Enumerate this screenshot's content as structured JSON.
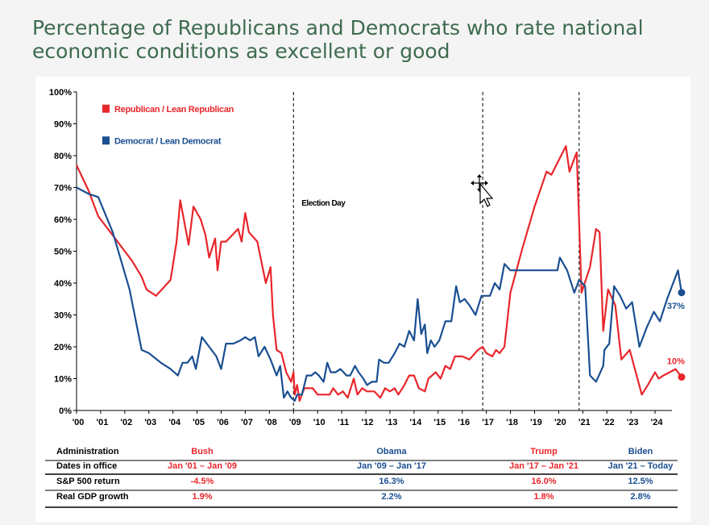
{
  "title_lines": [
    "Percentage of Republicans and Democrats who rate national",
    "economic conditions as excellent or good"
  ],
  "chart_data": {
    "type": "line",
    "title": "Percentage of Republicans and Democrats who rate national economic conditions as excellent or good",
    "xlabel": "",
    "ylabel": "",
    "xlim": [
      2000,
      2024.7
    ],
    "ylim": [
      0,
      100
    ],
    "grid": false,
    "legend_placement": "top-left",
    "y_ticks": [
      "0%",
      "10%",
      "20%",
      "30%",
      "40%",
      "50%",
      "60%",
      "70%",
      "80%",
      "90%",
      "100%"
    ],
    "x_ticks": [
      "'00",
      "'01",
      "'02",
      "'03",
      "'04",
      "'05",
      "'06",
      "'07",
      "'08",
      "'09",
      "'10",
      "'11",
      "'12",
      "'13",
      "'14",
      "'15",
      "'16",
      "'17",
      "'18",
      "'19",
      "'20",
      "'21",
      "'22",
      "'23",
      "'24"
    ],
    "annotations": [
      {
        "text": "Election Day",
        "x": 2009.0
      },
      {
        "text": "",
        "x": 2016.85
      },
      {
        "text": "",
        "x": 2020.85
      }
    ],
    "end_labels": [
      {
        "series": "Democrat / Lean Democrat",
        "text": "37%",
        "x": 2024.3,
        "y": 37
      },
      {
        "series": "Republican / Lean Republican",
        "text": "10%",
        "x": 2024.3,
        "y": 10.5
      }
    ],
    "series": [
      {
        "name": "Republican / Lean Republican",
        "color": "#e8262c",
        "points": [
          [
            2000.0,
            77
          ],
          [
            2000.5,
            69
          ],
          [
            2000.9,
            61
          ],
          [
            2001.5,
            55
          ],
          [
            2002.3,
            47
          ],
          [
            2002.7,
            42
          ],
          [
            2002.9,
            38
          ],
          [
            2003.3,
            36
          ],
          [
            2003.9,
            41
          ],
          [
            2004.15,
            53
          ],
          [
            2004.3,
            66
          ],
          [
            2004.65,
            52
          ],
          [
            2004.85,
            64
          ],
          [
            2005.15,
            60
          ],
          [
            2005.35,
            55
          ],
          [
            2005.5,
            48
          ],
          [
            2005.75,
            54
          ],
          [
            2005.85,
            44
          ],
          [
            2006.0,
            53
          ],
          [
            2006.2,
            53
          ],
          [
            2006.45,
            55
          ],
          [
            2006.7,
            57
          ],
          [
            2006.85,
            53
          ],
          [
            2007.0,
            62
          ],
          [
            2007.15,
            56
          ],
          [
            2007.5,
            53
          ],
          [
            2007.85,
            40
          ],
          [
            2008.05,
            45
          ],
          [
            2008.15,
            30
          ],
          [
            2008.3,
            19
          ],
          [
            2008.5,
            18
          ],
          [
            2008.7,
            12
          ],
          [
            2008.9,
            9
          ],
          [
            2009.0,
            12
          ],
          [
            2009.05,
            5
          ],
          [
            2009.15,
            8
          ],
          [
            2009.25,
            3
          ],
          [
            2009.45,
            7
          ],
          [
            2009.8,
            7
          ],
          [
            2010.0,
            5
          ],
          [
            2010.2,
            5
          ],
          [
            2010.5,
            5
          ],
          [
            2010.65,
            7
          ],
          [
            2010.85,
            5
          ],
          [
            2011.05,
            6
          ],
          [
            2011.25,
            4
          ],
          [
            2011.5,
            10
          ],
          [
            2011.65,
            5
          ],
          [
            2011.85,
            7
          ],
          [
            2012.05,
            6
          ],
          [
            2012.35,
            6
          ],
          [
            2012.6,
            4
          ],
          [
            2012.8,
            7
          ],
          [
            2013.0,
            6
          ],
          [
            2013.2,
            7
          ],
          [
            2013.35,
            5
          ],
          [
            2013.6,
            8
          ],
          [
            2013.8,
            11
          ],
          [
            2014.0,
            11
          ],
          [
            2014.2,
            7
          ],
          [
            2014.45,
            6
          ],
          [
            2014.6,
            10
          ],
          [
            2014.9,
            12
          ],
          [
            2015.1,
            10
          ],
          [
            2015.3,
            14
          ],
          [
            2015.5,
            13
          ],
          [
            2015.7,
            17
          ],
          [
            2016.0,
            17
          ],
          [
            2016.3,
            16
          ],
          [
            2016.65,
            19
          ],
          [
            2016.85,
            20
          ],
          [
            2017.0,
            18
          ],
          [
            2017.25,
            17
          ],
          [
            2017.4,
            19
          ],
          [
            2017.55,
            18
          ],
          [
            2017.75,
            20
          ],
          [
            2018.0,
            37
          ],
          [
            2018.5,
            51
          ],
          [
            2019.0,
            64
          ],
          [
            2019.5,
            75
          ],
          [
            2019.7,
            74
          ],
          [
            2020.1,
            80
          ],
          [
            2020.3,
            83
          ],
          [
            2020.45,
            75
          ],
          [
            2020.75,
            81
          ],
          [
            2020.95,
            37
          ],
          [
            2021.3,
            45
          ],
          [
            2021.55,
            57
          ],
          [
            2021.7,
            56
          ],
          [
            2021.85,
            25
          ],
          [
            2022.05,
            38
          ],
          [
            2022.35,
            33
          ],
          [
            2022.6,
            16
          ],
          [
            2022.95,
            19
          ],
          [
            2023.2,
            12
          ],
          [
            2023.45,
            5
          ],
          [
            2023.7,
            8
          ],
          [
            2024.0,
            12
          ],
          [
            2024.15,
            10
          ],
          [
            2024.35,
            11
          ],
          [
            2024.6,
            12
          ],
          [
            2024.85,
            13
          ],
          [
            2024.95,
            12
          ],
          [
            2025.1,
            10.5
          ]
        ]
      },
      {
        "name": "Democrat / Lean Democrat",
        "color": "#1a4f91",
        "points": [
          [
            2000.0,
            70
          ],
          [
            2000.5,
            68
          ],
          [
            2000.9,
            67
          ],
          [
            2001.5,
            56
          ],
          [
            2002.2,
            38
          ],
          [
            2002.7,
            19
          ],
          [
            2003.0,
            18
          ],
          [
            2003.5,
            15
          ],
          [
            2003.9,
            13
          ],
          [
            2004.2,
            11
          ],
          [
            2004.4,
            15
          ],
          [
            2004.6,
            15
          ],
          [
            2004.8,
            17
          ],
          [
            2004.95,
            13
          ],
          [
            2005.2,
            23
          ],
          [
            2005.5,
            20
          ],
          [
            2005.8,
            17
          ],
          [
            2006.0,
            13
          ],
          [
            2006.2,
            21
          ],
          [
            2006.5,
            21
          ],
          [
            2006.8,
            22
          ],
          [
            2007.0,
            23
          ],
          [
            2007.2,
            22
          ],
          [
            2007.4,
            23
          ],
          [
            2007.55,
            17
          ],
          [
            2007.8,
            20
          ],
          [
            2008.05,
            16
          ],
          [
            2008.3,
            11
          ],
          [
            2008.45,
            14
          ],
          [
            2008.6,
            4
          ],
          [
            2008.75,
            6
          ],
          [
            2008.9,
            4
          ],
          [
            2009.05,
            3
          ],
          [
            2009.15,
            5
          ],
          [
            2009.35,
            5
          ],
          [
            2009.55,
            11
          ],
          [
            2009.75,
            11
          ],
          [
            2009.9,
            12
          ],
          [
            2010.05,
            11
          ],
          [
            2010.25,
            9
          ],
          [
            2010.4,
            15
          ],
          [
            2010.55,
            12
          ],
          [
            2010.75,
            12
          ],
          [
            2010.95,
            13
          ],
          [
            2011.2,
            11
          ],
          [
            2011.35,
            11
          ],
          [
            2011.55,
            14
          ],
          [
            2011.7,
            12
          ],
          [
            2011.9,
            10
          ],
          [
            2012.05,
            8
          ],
          [
            2012.25,
            9
          ],
          [
            2012.45,
            9
          ],
          [
            2012.55,
            16
          ],
          [
            2012.75,
            15
          ],
          [
            2012.95,
            15
          ],
          [
            2013.2,
            18
          ],
          [
            2013.4,
            21
          ],
          [
            2013.6,
            20
          ],
          [
            2013.8,
            25
          ],
          [
            2014.0,
            22
          ],
          [
            2014.15,
            35
          ],
          [
            2014.3,
            24
          ],
          [
            2014.45,
            27
          ],
          [
            2014.55,
            18
          ],
          [
            2014.7,
            22
          ],
          [
            2014.85,
            20
          ],
          [
            2015.05,
            22
          ],
          [
            2015.3,
            28
          ],
          [
            2015.55,
            28
          ],
          [
            2015.75,
            39
          ],
          [
            2015.9,
            34
          ],
          [
            2016.1,
            35
          ],
          [
            2016.3,
            33
          ],
          [
            2016.55,
            30
          ],
          [
            2016.8,
            36
          ],
          [
            2017.0,
            36
          ],
          [
            2017.15,
            36
          ],
          [
            2017.35,
            40
          ],
          [
            2017.55,
            38
          ],
          [
            2017.75,
            46
          ],
          [
            2018.0,
            44
          ],
          [
            2018.5,
            44
          ],
          [
            2019.0,
            44
          ],
          [
            2019.5,
            44
          ],
          [
            2019.95,
            44
          ],
          [
            2020.05,
            48
          ],
          [
            2020.35,
            44
          ],
          [
            2020.65,
            37
          ],
          [
            2020.85,
            41
          ],
          [
            2021.1,
            39
          ],
          [
            2021.3,
            11
          ],
          [
            2021.55,
            9
          ],
          [
            2021.85,
            14
          ],
          [
            2021.9,
            19
          ],
          [
            2022.1,
            21
          ],
          [
            2022.3,
            39
          ],
          [
            2022.55,
            36
          ],
          [
            2022.8,
            32
          ],
          [
            2023.05,
            34
          ],
          [
            2023.35,
            20
          ],
          [
            2023.65,
            26
          ],
          [
            2023.95,
            31
          ],
          [
            2024.2,
            28
          ],
          [
            2024.5,
            35
          ],
          [
            2024.75,
            40
          ],
          [
            2024.95,
            44
          ],
          [
            2025.1,
            37
          ]
        ]
      }
    ]
  },
  "table": {
    "rows": [
      {
        "label": "Administration",
        "cells": [
          "Bush",
          "Obama",
          "Trump",
          "Biden"
        ]
      },
      {
        "label": "Dates in office",
        "cells": [
          "Jan '01 – Jan '09",
          "Jan '09 – Jan '17",
          "Jan '17 – Jan '21",
          "Jan '21 – Today"
        ]
      },
      {
        "label": "S&P 500 return",
        "cells": [
          "-4.5%",
          "16.3%",
          "16.0%",
          "12.5%"
        ]
      },
      {
        "label": "Real GDP growth",
        "cells": [
          "1.9%",
          "2.2%",
          "1.8%",
          "2.8%"
        ]
      }
    ],
    "cell_colors": [
      "#e8262c",
      "#1a4f91",
      "#e8262c",
      "#1a4f91"
    ]
  }
}
